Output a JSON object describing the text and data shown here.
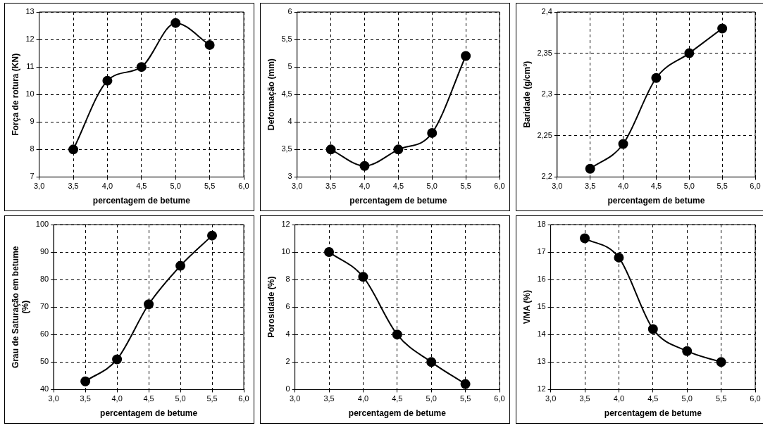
{
  "chart_data": [
    {
      "type": "line",
      "xlabel": "percentagem de betume",
      "ylabel": "Força de rotura (KN)",
      "x": [
        3.5,
        4,
        4.5,
        5,
        5.5
      ],
      "values": [
        8,
        10.5,
        11,
        12.6,
        11.8
      ],
      "color": "#000000",
      "marker": "circle",
      "grid": true,
      "xlim": [
        3,
        6
      ],
      "xticks": [
        {
          "value": 3,
          "label": "3,0"
        },
        {
          "value": 3.5,
          "label": "3,5"
        },
        {
          "value": 4,
          "label": "4,0"
        },
        {
          "value": 4.5,
          "label": "4,5"
        },
        {
          "value": 5,
          "label": "5,0"
        },
        {
          "value": 5.5,
          "label": "5,5"
        },
        {
          "value": 6,
          "label": "6,0"
        }
      ],
      "ylim": [
        7,
        13
      ],
      "yticks": [
        7,
        8,
        9,
        10,
        11,
        12,
        13
      ]
    },
    {
      "type": "line",
      "xlabel": "percentagem de betume",
      "ylabel": "Deformação (mm)",
      "x": [
        3.5,
        4,
        4.5,
        5,
        5.5
      ],
      "values": [
        3.5,
        3.2,
        3.5,
        3.8,
        5.2
      ],
      "color": "#000000",
      "marker": "circle",
      "grid": true,
      "xlim": [
        3,
        6
      ],
      "xticks": [
        {
          "value": 3,
          "label": "3,0"
        },
        {
          "value": 3.5,
          "label": "3,5"
        },
        {
          "value": 4,
          "label": "4,0"
        },
        {
          "value": 4.5,
          "label": "4,5"
        },
        {
          "value": 5,
          "label": "5,0"
        },
        {
          "value": 5.5,
          "label": "5,5"
        },
        {
          "value": 6,
          "label": "6,0"
        }
      ],
      "ylim": [
        3,
        6
      ],
      "yticks": [
        3,
        {
          "value": 3.5,
          "label": "3,5"
        },
        4,
        {
          "value": 4.5,
          "label": "4,5"
        },
        5,
        {
          "value": 5.5,
          "label": "5,5"
        },
        6
      ]
    },
    {
      "type": "line",
      "xlabel": "percentagem de betume",
      "ylabel": "Baridade (g/cm³)",
      "x": [
        3.5,
        4,
        4.5,
        5,
        5.5
      ],
      "values": [
        2.21,
        2.24,
        2.32,
        2.35,
        2.38
      ],
      "color": "#000000",
      "marker": "circle",
      "grid": true,
      "xlim": [
        3,
        6
      ],
      "xticks": [
        {
          "value": 3,
          "label": "3,0"
        },
        {
          "value": 3.5,
          "label": "3,5"
        },
        {
          "value": 4,
          "label": "4,0"
        },
        {
          "value": 4.5,
          "label": "4,5"
        },
        {
          "value": 5,
          "label": "5,0"
        },
        {
          "value": 5.5,
          "label": "5,5"
        },
        {
          "value": 6,
          "label": "6,0"
        }
      ],
      "ylim": [
        2.2,
        2.4
      ],
      "yticks": [
        {
          "value": 2.2,
          "label": "2,2"
        },
        {
          "value": 2.25,
          "label": "2,25"
        },
        {
          "value": 2.3,
          "label": "2,3"
        },
        {
          "value": 2.35,
          "label": "2,35"
        },
        {
          "value": 2.4,
          "label": "2,4"
        }
      ]
    },
    {
      "type": "line",
      "xlabel": "percentagem de betume",
      "ylabel": "Grau de Saturação em betume (%)",
      "x": [
        3.5,
        4,
        4.5,
        5,
        5.5
      ],
      "values": [
        43,
        51,
        71,
        85,
        96
      ],
      "color": "#000000",
      "marker": "circle",
      "grid": true,
      "xlim": [
        3,
        6
      ],
      "xticks": [
        {
          "value": 3,
          "label": "3,0"
        },
        {
          "value": 3.5,
          "label": "3,5"
        },
        {
          "value": 4,
          "label": "4,0"
        },
        {
          "value": 4.5,
          "label": "4,5"
        },
        {
          "value": 5,
          "label": "5,0"
        },
        {
          "value": 5.5,
          "label": "5,5"
        },
        {
          "value": 6,
          "label": "6,0"
        }
      ],
      "ylim": [
        40,
        100
      ],
      "yticks": [
        40,
        50,
        60,
        70,
        80,
        90,
        100
      ]
    },
    {
      "type": "line",
      "xlabel": "percentagem de betume",
      "ylabel": "Porosidade (%)",
      "x": [
        3.5,
        4,
        4.5,
        5,
        5.5
      ],
      "values": [
        10,
        8.2,
        4,
        2,
        0.4
      ],
      "color": "#000000",
      "marker": "circle",
      "grid": true,
      "xlim": [
        3,
        6
      ],
      "xticks": [
        {
          "value": 3,
          "label": "3,0"
        },
        {
          "value": 3.5,
          "label": "3,5"
        },
        {
          "value": 4,
          "label": "4,0"
        },
        {
          "value": 4.5,
          "label": "4,5"
        },
        {
          "value": 5,
          "label": "5,0"
        },
        {
          "value": 5.5,
          "label": "5,5"
        },
        {
          "value": 6,
          "label": "6,0"
        }
      ],
      "ylim": [
        0,
        12
      ],
      "yticks": [
        0,
        2,
        4,
        6,
        8,
        10,
        12
      ]
    },
    {
      "type": "line",
      "xlabel": "percentagem de betume",
      "ylabel": "VMA (%)",
      "x": [
        3.5,
        4,
        4.5,
        5,
        5.5
      ],
      "values": [
        17.5,
        16.8,
        14.2,
        13.4,
        13
      ],
      "color": "#000000",
      "marker": "circle",
      "grid": true,
      "xlim": [
        3,
        6
      ],
      "xticks": [
        {
          "value": 3,
          "label": "3,0"
        },
        {
          "value": 3.5,
          "label": "3,5"
        },
        {
          "value": 4,
          "label": "4,0"
        },
        {
          "value": 4.5,
          "label": "4,5"
        },
        {
          "value": 5,
          "label": "5,0"
        },
        {
          "value": 5.5,
          "label": "5,5"
        },
        {
          "value": 6,
          "label": "6,0"
        }
      ],
      "ylim": [
        12,
        18
      ],
      "yticks": [
        12,
        13,
        14,
        15,
        16,
        17,
        18
      ]
    }
  ]
}
